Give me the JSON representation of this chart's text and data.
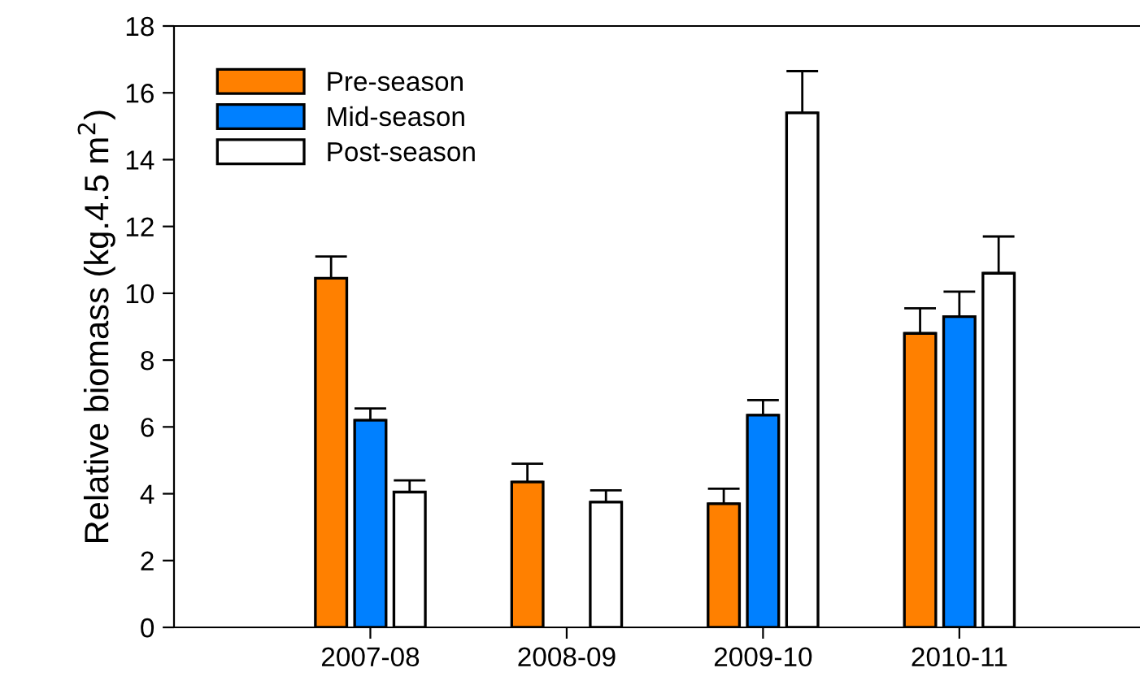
{
  "chart_data": {
    "type": "bar",
    "ylabel": "Relative biomass (kg.4.5 m$^{2}$)",
    "categories": [
      "2007-08",
      "2008-09",
      "2009-10",
      "2010-11"
    ],
    "series": [
      {
        "name": "Pre-season",
        "color": "#ff8000",
        "values": [
          10.45,
          4.35,
          3.7,
          8.8
        ],
        "errors": [
          [
            10.45,
            11.1
          ],
          [
            4.35,
            4.9
          ],
          [
            3.7,
            4.15
          ],
          [
            8.8,
            9.55
          ]
        ]
      },
      {
        "name": "Mid-season",
        "color": "#0080ff",
        "values": [
          6.2,
          null,
          6.35,
          9.3
        ],
        "errors": [
          [
            6.2,
            6.55
          ],
          null,
          [
            6.35,
            6.8
          ],
          [
            9.3,
            10.05
          ]
        ]
      },
      {
        "name": "Post-season",
        "color": "#ffffff",
        "values": [
          4.05,
          3.75,
          15.4,
          10.6
        ],
        "errors": [
          [
            4.05,
            4.4
          ],
          [
            3.75,
            4.1
          ],
          [
            15.4,
            16.65
          ],
          [
            10.6,
            11.7
          ]
        ]
      }
    ],
    "ylim": [
      0,
      18
    ],
    "yticks": [
      0,
      2,
      4,
      6,
      8,
      10,
      12,
      14,
      16,
      18
    ],
    "grid": false,
    "legend": "top left"
  }
}
